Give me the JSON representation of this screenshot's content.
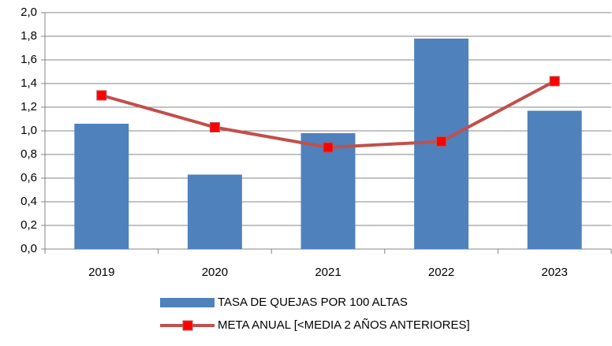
{
  "chart_data": {
    "type": "bar",
    "categories": [
      "2019",
      "2020",
      "2021",
      "2022",
      "2023"
    ],
    "series": [
      {
        "name": "TASA DE QUEJAS POR 100 ALTAS",
        "type": "bar",
        "color": "#4f81bd",
        "values": [
          1.06,
          0.63,
          0.98,
          1.78,
          1.17
        ]
      },
      {
        "name": "META ANUAL [<MEDIA 2 AÑOS ANTERIORES]",
        "type": "line",
        "color": "#c0504d",
        "marker_color": "#ff0000",
        "values": [
          1.3,
          1.03,
          0.86,
          0.91,
          1.42
        ]
      }
    ],
    "ylim": [
      0,
      2
    ],
    "yticks": [
      {
        "value": 0,
        "label": "0,0"
      },
      {
        "value": 0.2,
        "label": "0,2"
      },
      {
        "value": 0.4,
        "label": "0,4"
      },
      {
        "value": 0.6,
        "label": "0,6"
      },
      {
        "value": 0.8,
        "label": "0,8"
      },
      {
        "value": 1,
        "label": "1,0"
      },
      {
        "value": 1.2,
        "label": "1,2"
      },
      {
        "value": 1.4,
        "label": "1,4"
      },
      {
        "value": 1.6,
        "label": "1,6"
      },
      {
        "value": 1.8,
        "label": "1,8"
      },
      {
        "value": 2,
        "label": "2,0"
      }
    ],
    "grid": true,
    "legend": "bottom"
  }
}
